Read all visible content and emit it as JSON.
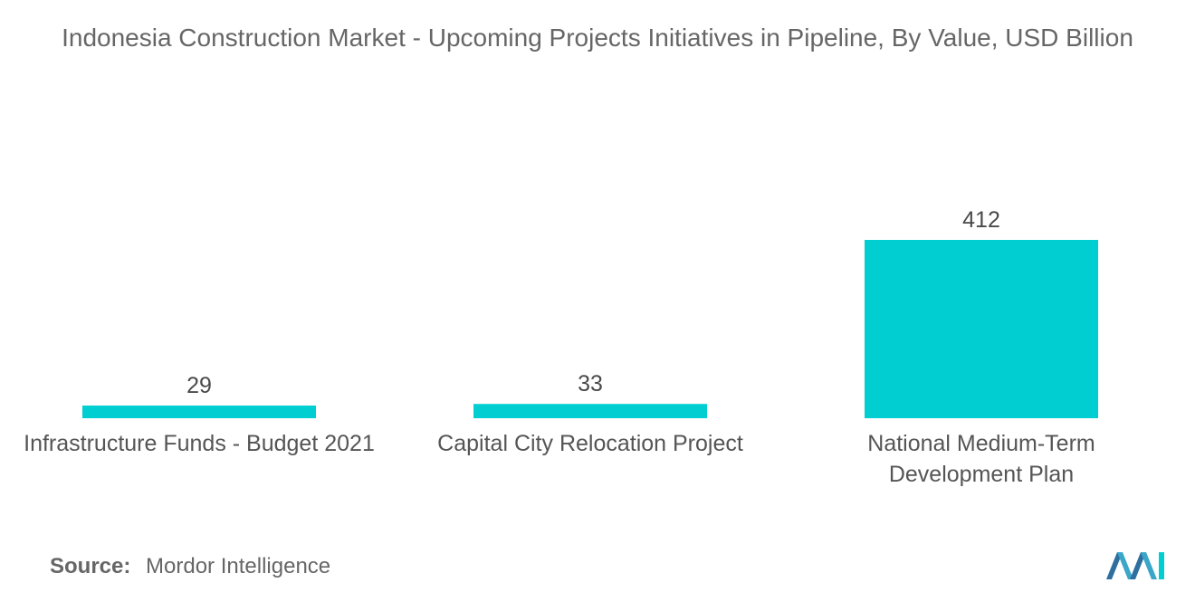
{
  "title": "Indonesia Construction Market - Upcoming Projects Initiatives in Pipeline, By Value, USD Billion",
  "source": {
    "label": "Source:",
    "value": "Mordor Intelligence"
  },
  "colors": {
    "bar": "#00CED1",
    "title_text": "#666666",
    "value_text": "#4a4a4a",
    "category_text": "#555555"
  },
  "chart_data": {
    "type": "bar",
    "title": "Indonesia Construction Market - Upcoming Projects Initiatives in Pipeline, By Value, USD Billion",
    "categories": [
      [
        "Infrastructure Funds - Budget 2021"
      ],
      [
        "Capital City Relocation Project"
      ],
      [
        "National Medium-Term",
        "Development Plan"
      ]
    ],
    "values": [
      29,
      33,
      412
    ],
    "data_labels": [
      "29",
      "33",
      "412"
    ],
    "xlabel": "",
    "ylabel": "",
    "ylim": [
      0,
      412
    ],
    "grid": false,
    "legend": "none",
    "value_axis_visible": false
  }
}
